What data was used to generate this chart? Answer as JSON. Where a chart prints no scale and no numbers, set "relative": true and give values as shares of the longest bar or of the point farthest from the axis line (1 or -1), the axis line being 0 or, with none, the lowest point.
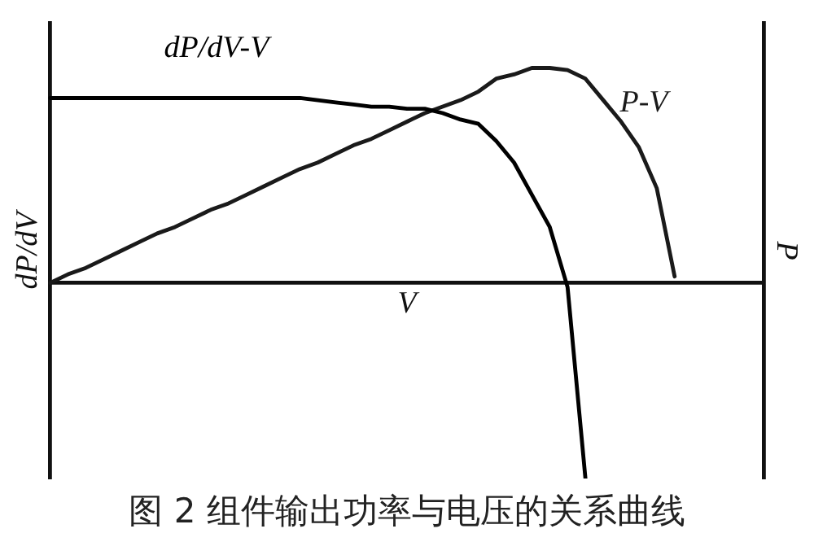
{
  "chart_data": {
    "type": "line",
    "title": "图 2 组件输出功率与电压的关系曲线",
    "xlabel": "V",
    "ylabel": "dP/dV",
    "y2label": "P",
    "relative": true,
    "legend": false,
    "marker": "none",
    "line_style": "solid",
    "categories": [
      null,
      null,
      null,
      null,
      null,
      null,
      null,
      null,
      null,
      null,
      null,
      null,
      null,
      null,
      null,
      null,
      null,
      null,
      null,
      null,
      null,
      null,
      null,
      null,
      null,
      null,
      null,
      null,
      null,
      null,
      null,
      null,
      null,
      null,
      null,
      null,
      null,
      null,
      null,
      null,
      null
    ],
    "series": [
      {
        "name": "dP/dV-V",
        "color": "#000000",
        "values": [
          0.86,
          0.86,
          0.86,
          0.86,
          0.86,
          0.86,
          0.86,
          0.86,
          0.86,
          0.86,
          0.86,
          0.86,
          0.86,
          0.86,
          0.86,
          0.85,
          0.84,
          0.83,
          0.82,
          0.82,
          0.81,
          0.81,
          0.79,
          0.76,
          0.74,
          0.66,
          0.56,
          0.41,
          0.26,
          -0.02,
          -0.91,
          null,
          null,
          null,
          null,
          null,
          null,
          null,
          null,
          null,
          null
        ]
      },
      {
        "name": "P-V",
        "color": "#1a1a1a",
        "values": [
          0,
          0.04,
          0.07,
          0.11,
          0.15,
          0.19,
          0.23,
          0.26,
          0.3,
          0.34,
          0.37,
          0.41,
          0.45,
          0.49,
          0.53,
          0.56,
          0.6,
          0.64,
          0.67,
          0.71,
          0.75,
          0.79,
          0.82,
          0.85,
          0.89,
          0.95,
          0.97,
          1,
          1,
          0.99,
          0.95,
          0.85,
          0.75,
          0.63,
          0.44,
          0.03,
          null,
          null,
          null,
          null,
          null
        ]
      }
    ]
  }
}
